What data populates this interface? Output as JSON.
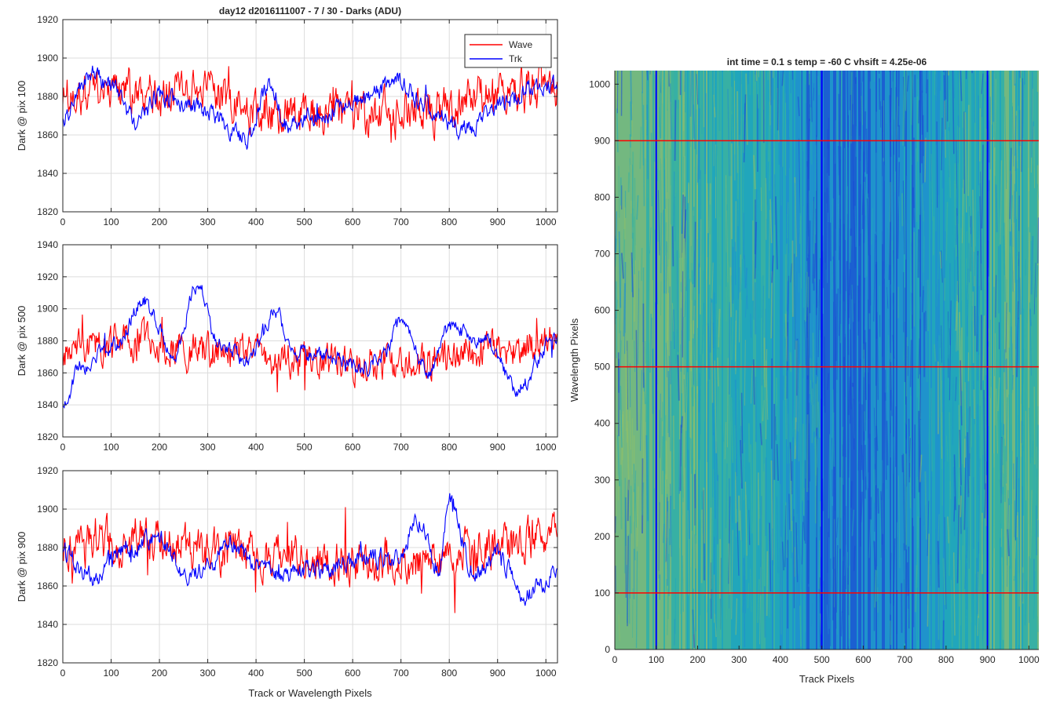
{
  "chart_data": [
    {
      "type": "line",
      "title": "day12 d2016111007 - 7 / 30 - Darks (ADU)",
      "xlabel": "",
      "ylabel": "Dark @ pix 100",
      "xlim": [
        0,
        1024
      ],
      "ylim": [
        1820,
        1920
      ],
      "xticks": [
        0,
        100,
        200,
        300,
        400,
        500,
        600,
        700,
        800,
        900,
        1000
      ],
      "yticks": [
        1820,
        1840,
        1860,
        1880,
        1900,
        1920
      ],
      "grid": true,
      "legend": {
        "placement": "top-right",
        "entries": [
          "Wave",
          "Trk"
        ]
      },
      "series": [
        {
          "name": "Wave",
          "color": "#ff0000",
          "mean": 1876,
          "noise": 9,
          "spikes": 9,
          "anchors": [
            [
              0,
              1880
            ],
            [
              150,
              1882
            ],
            [
              300,
              1880
            ],
            [
              450,
              1870
            ],
            [
              600,
              1870
            ],
            [
              750,
              1872
            ],
            [
              900,
              1880
            ],
            [
              1024,
              1885
            ]
          ]
        },
        {
          "name": "Trk",
          "color": "#0000ff",
          "mean": 1876,
          "noise": 4,
          "spikes": 4,
          "anchors": [
            [
              0,
              1870
            ],
            [
              60,
              1892
            ],
            [
              100,
              1885
            ],
            [
              150,
              1868
            ],
            [
              200,
              1880
            ],
            [
              250,
              1877
            ],
            [
              300,
              1872
            ],
            [
              380,
              1858
            ],
            [
              430,
              1888
            ],
            [
              460,
              1865
            ],
            [
              540,
              1872
            ],
            [
              620,
              1878
            ],
            [
              690,
              1888
            ],
            [
              760,
              1873
            ],
            [
              830,
              1863
            ],
            [
              900,
              1875
            ],
            [
              960,
              1882
            ],
            [
              1024,
              1885
            ]
          ]
        }
      ]
    },
    {
      "type": "line",
      "title": "",
      "xlabel": "",
      "ylabel": "Dark @ pix 500",
      "xlim": [
        0,
        1024
      ],
      "ylim": [
        1820,
        1940
      ],
      "xticks": [
        0,
        100,
        200,
        300,
        400,
        500,
        600,
        700,
        800,
        900,
        1000
      ],
      "yticks": [
        1820,
        1840,
        1860,
        1880,
        1900,
        1920,
        1940
      ],
      "grid": true,
      "series": [
        {
          "name": "Wave",
          "color": "#ff0000",
          "mean": 1873,
          "noise": 9,
          "spikes": 10,
          "anchors": [
            [
              0,
              1875
            ],
            [
              150,
              1880
            ],
            [
              300,
              1873
            ],
            [
              450,
              1870
            ],
            [
              600,
              1866
            ],
            [
              750,
              1868
            ],
            [
              900,
              1876
            ],
            [
              1024,
              1880
            ]
          ]
        },
        {
          "name": "Trk",
          "color": "#0000ff",
          "mean": 1878,
          "noise": 4,
          "spikes": 4,
          "anchors": [
            [
              0,
              1840
            ],
            [
              40,
              1865
            ],
            [
              100,
              1875
            ],
            [
              170,
              1905
            ],
            [
              230,
              1872
            ],
            [
              280,
              1915
            ],
            [
              320,
              1880
            ],
            [
              380,
              1868
            ],
            [
              440,
              1898
            ],
            [
              480,
              1872
            ],
            [
              560,
              1870
            ],
            [
              620,
              1862
            ],
            [
              660,
              1870
            ],
            [
              700,
              1890
            ],
            [
              760,
              1862
            ],
            [
              800,
              1888
            ],
            [
              880,
              1880
            ],
            [
              940,
              1850
            ],
            [
              1024,
              1882
            ]
          ]
        }
      ]
    },
    {
      "type": "line",
      "title": "",
      "xlabel": "Track or Wavelength Pixels",
      "ylabel": "Dark @ pix 900",
      "xlim": [
        0,
        1024
      ],
      "ylim": [
        1820,
        1920
      ],
      "xticks": [
        0,
        100,
        200,
        300,
        400,
        500,
        600,
        700,
        800,
        900,
        1000
      ],
      "yticks": [
        1820,
        1840,
        1860,
        1880,
        1900,
        1920
      ],
      "grid": true,
      "series": [
        {
          "name": "Wave",
          "color": "#ff0000",
          "mean": 1880,
          "noise": 9,
          "spikes": 10,
          "anchors": [
            [
              0,
              1880
            ],
            [
              150,
              1885
            ],
            [
              300,
              1878
            ],
            [
              450,
              1876
            ],
            [
              600,
              1872
            ],
            [
              750,
              1874
            ],
            [
              900,
              1880
            ],
            [
              1024,
              1885
            ]
          ]
        },
        {
          "name": "Trk",
          "color": "#0000ff",
          "mean": 1872,
          "noise": 4,
          "spikes": 4,
          "anchors": [
            [
              0,
              1878
            ],
            [
              60,
              1865
            ],
            [
              130,
              1880
            ],
            [
              200,
              1885
            ],
            [
              260,
              1865
            ],
            [
              300,
              1870
            ],
            [
              350,
              1882
            ],
            [
              400,
              1870
            ],
            [
              460,
              1866
            ],
            [
              520,
              1868
            ],
            [
              600,
              1873
            ],
            [
              660,
              1874
            ],
            [
              700,
              1876
            ],
            [
              730,
              1895
            ],
            [
              780,
              1870
            ],
            [
              800,
              1905
            ],
            [
              850,
              1868
            ],
            [
              900,
              1875
            ],
            [
              960,
              1856
            ],
            [
              1024,
              1868
            ]
          ]
        }
      ]
    },
    {
      "type": "heatmap",
      "title": "int time = 0.1 s   temp = -60 C   vhsift = 4.25e-06",
      "xlabel": "Track Pixels",
      "ylabel": "Wavelength Pixels",
      "xlim": [
        0,
        1024
      ],
      "ylim": [
        0,
        1024
      ],
      "xticks": [
        0,
        100,
        200,
        300,
        400,
        500,
        600,
        700,
        800,
        900,
        1000
      ],
      "yticks": [
        0,
        100,
        200,
        300,
        400,
        500,
        600,
        700,
        800,
        900,
        1000
      ],
      "grid": false,
      "colormap": [
        "#1a4bd6",
        "#1f8fcf",
        "#22a8b8",
        "#3fb59a",
        "#8fc06a"
      ],
      "vertical_lines": {
        "x": [
          100,
          500,
          900
        ],
        "color": "#0000ff"
      },
      "horizontal_lines": {
        "y": [
          100,
          500,
          900
        ],
        "color": "#ff0000"
      }
    }
  ]
}
